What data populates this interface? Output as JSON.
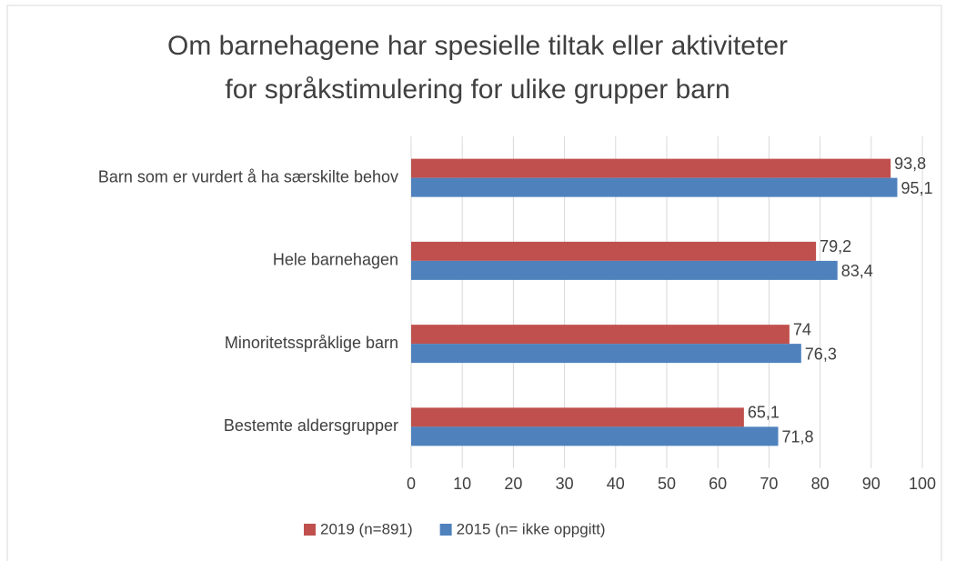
{
  "chart_data": {
    "type": "hbar",
    "title": [
      "Om barnehagene har spesielle tiltak eller aktiviteter",
      "for språkstimulering for ulike grupper barn"
    ],
    "categories": [
      "Barn som er vurdert å ha særskilte behov",
      "Hele barnehagen",
      "Minoritetsspråklige barn",
      "Bestemte aldersgrupper"
    ],
    "series": [
      {
        "name": "2019 (n=891)",
        "color": "#c0504d",
        "values": [
          93.8,
          79.2,
          74,
          65.1
        ],
        "value_labels": [
          "93,8",
          "79,2",
          "74",
          "65,1"
        ]
      },
      {
        "name": "2015 (n= ikke oppgitt)",
        "color": "#4f81bd",
        "values": [
          95.1,
          83.4,
          76.3,
          71.8
        ],
        "value_labels": [
          "95,1",
          "83,4",
          "76,3",
          "71,8"
        ]
      }
    ],
    "xlim": [
      0,
      100
    ],
    "xticks": [
      0,
      10,
      20,
      30,
      40,
      50,
      60,
      70,
      80,
      90,
      100
    ],
    "grid": true,
    "legend": "bottom"
  }
}
